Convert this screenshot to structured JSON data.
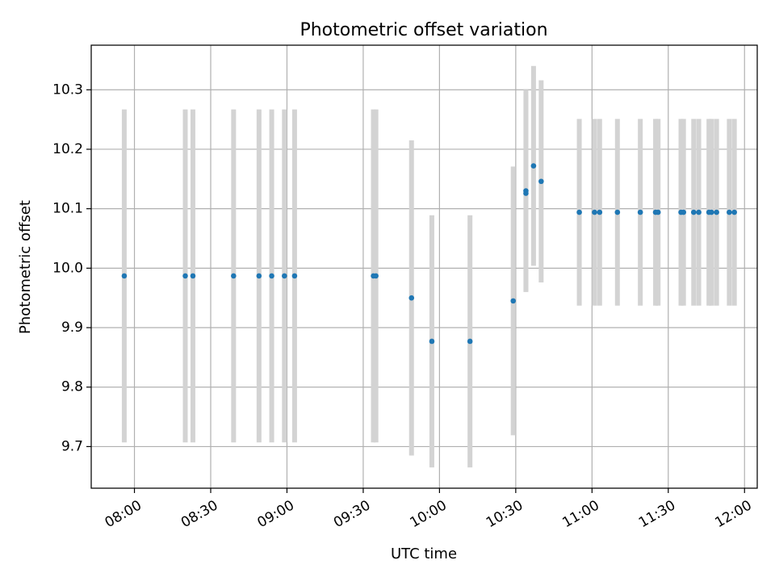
{
  "chart_data": {
    "type": "scatter",
    "title": "Photometric offset variation",
    "xlabel": "UTC time",
    "ylabel": "Photometric offset",
    "x_axis": "time",
    "xlim": [
      "07:43",
      "12:05"
    ],
    "ylim": [
      9.63,
      10.375
    ],
    "xticks": [
      "08:00",
      "08:30",
      "09:00",
      "09:30",
      "10:00",
      "10:30",
      "11:00",
      "11:30",
      "12:00"
    ],
    "yticks": [
      "9.7",
      "9.8",
      "9.9",
      "10.0",
      "10.1",
      "10.2",
      "10.3"
    ],
    "grid": true,
    "colors": {
      "points": "#1f77b4",
      "error_bars": "#d3d3d3",
      "grid": "#b0b0b0"
    },
    "series": [
      {
        "points": [
          {
            "x": "07:56",
            "y": 9.987,
            "err": 0.28
          },
          {
            "x": "08:20",
            "y": 9.987,
            "err": 0.28
          },
          {
            "x": "08:23",
            "y": 9.987,
            "err": 0.28
          },
          {
            "x": "08:39",
            "y": 9.987,
            "err": 0.28
          },
          {
            "x": "08:49",
            "y": 9.987,
            "err": 0.28
          },
          {
            "x": "08:54",
            "y": 9.987,
            "err": 0.28
          },
          {
            "x": "08:59",
            "y": 9.987,
            "err": 0.28
          },
          {
            "x": "09:03",
            "y": 9.987,
            "err": 0.28
          },
          {
            "x": "09:34",
            "y": 9.987,
            "err": 0.28
          },
          {
            "x": "09:35",
            "y": 9.987,
            "err": 0.28
          },
          {
            "x": "09:49",
            "y": 9.95,
            "err": 0.265
          },
          {
            "x": "09:57",
            "y": 9.877,
            "err": 0.212
          },
          {
            "x": "10:12",
            "y": 9.877,
            "err": 0.212
          },
          {
            "x": "10:29",
            "y": 9.945,
            "err": 0.226
          },
          {
            "x": "10:34",
            "y": 10.126,
            "err": 0.164
          },
          {
            "x": "10:34",
            "y": 10.13,
            "err": 0.17
          },
          {
            "x": "10:37",
            "y": 10.172,
            "err": 0.168
          },
          {
            "x": "10:40",
            "y": 10.146,
            "err": 0.17
          },
          {
            "x": "10:55",
            "y": 10.094,
            "err": 0.157
          },
          {
            "x": "11:01",
            "y": 10.094,
            "err": 0.157
          },
          {
            "x": "11:03",
            "y": 10.094,
            "err": 0.157
          },
          {
            "x": "11:10",
            "y": 10.094,
            "err": 0.157
          },
          {
            "x": "11:19",
            "y": 10.094,
            "err": 0.157
          },
          {
            "x": "11:25",
            "y": 10.094,
            "err": 0.157
          },
          {
            "x": "11:26",
            "y": 10.094,
            "err": 0.157
          },
          {
            "x": "11:35",
            "y": 10.094,
            "err": 0.157
          },
          {
            "x": "11:36",
            "y": 10.094,
            "err": 0.157
          },
          {
            "x": "11:40",
            "y": 10.094,
            "err": 0.157
          },
          {
            "x": "11:42",
            "y": 10.094,
            "err": 0.157
          },
          {
            "x": "11:46",
            "y": 10.094,
            "err": 0.157
          },
          {
            "x": "11:47",
            "y": 10.094,
            "err": 0.157
          },
          {
            "x": "11:49",
            "y": 10.094,
            "err": 0.157
          },
          {
            "x": "11:54",
            "y": 10.094,
            "err": 0.157
          },
          {
            "x": "11:56",
            "y": 10.094,
            "err": 0.157
          }
        ]
      }
    ]
  }
}
